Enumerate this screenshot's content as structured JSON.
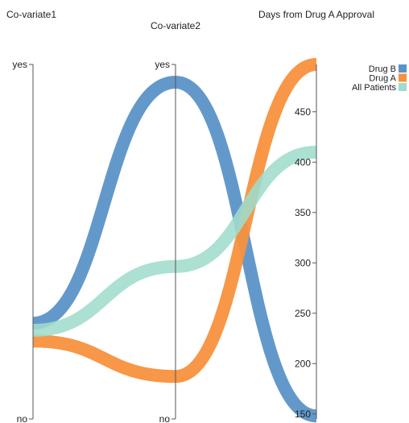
{
  "chart_data": {
    "type": "parallel-coordinates",
    "axes": [
      {
        "name": "Co-variate1",
        "kind": "categorical",
        "ticks": [
          "yes",
          "no"
        ]
      },
      {
        "name": "Co-variate2",
        "kind": "categorical",
        "ticks": [
          "yes",
          "no"
        ]
      },
      {
        "name": "Days from Drug A Approval",
        "kind": "numeric",
        "ticks": [
          150,
          200,
          250,
          300,
          350,
          400,
          450
        ],
        "range": [
          145,
          497
        ]
      }
    ],
    "series": [
      {
        "name": "Drug B",
        "color": "#5b93c7",
        "values": [
          0.27,
          0.95,
          148
        ]
      },
      {
        "name": "Drug A",
        "color": "#f7913d",
        "values": [
          0.22,
          0.12,
          497
        ]
      },
      {
        "name": "All Patients",
        "color": "#9fdccd",
        "values": [
          0.25,
          0.43,
          410
        ]
      }
    ],
    "legend": {
      "position": "top-right",
      "entries": [
        {
          "label": "Drug B",
          "color": "#5b93c7"
        },
        {
          "label": "Drug A",
          "color": "#f7913d"
        },
        {
          "label": "All Patients",
          "color": "#9fdccd"
        }
      ]
    }
  }
}
